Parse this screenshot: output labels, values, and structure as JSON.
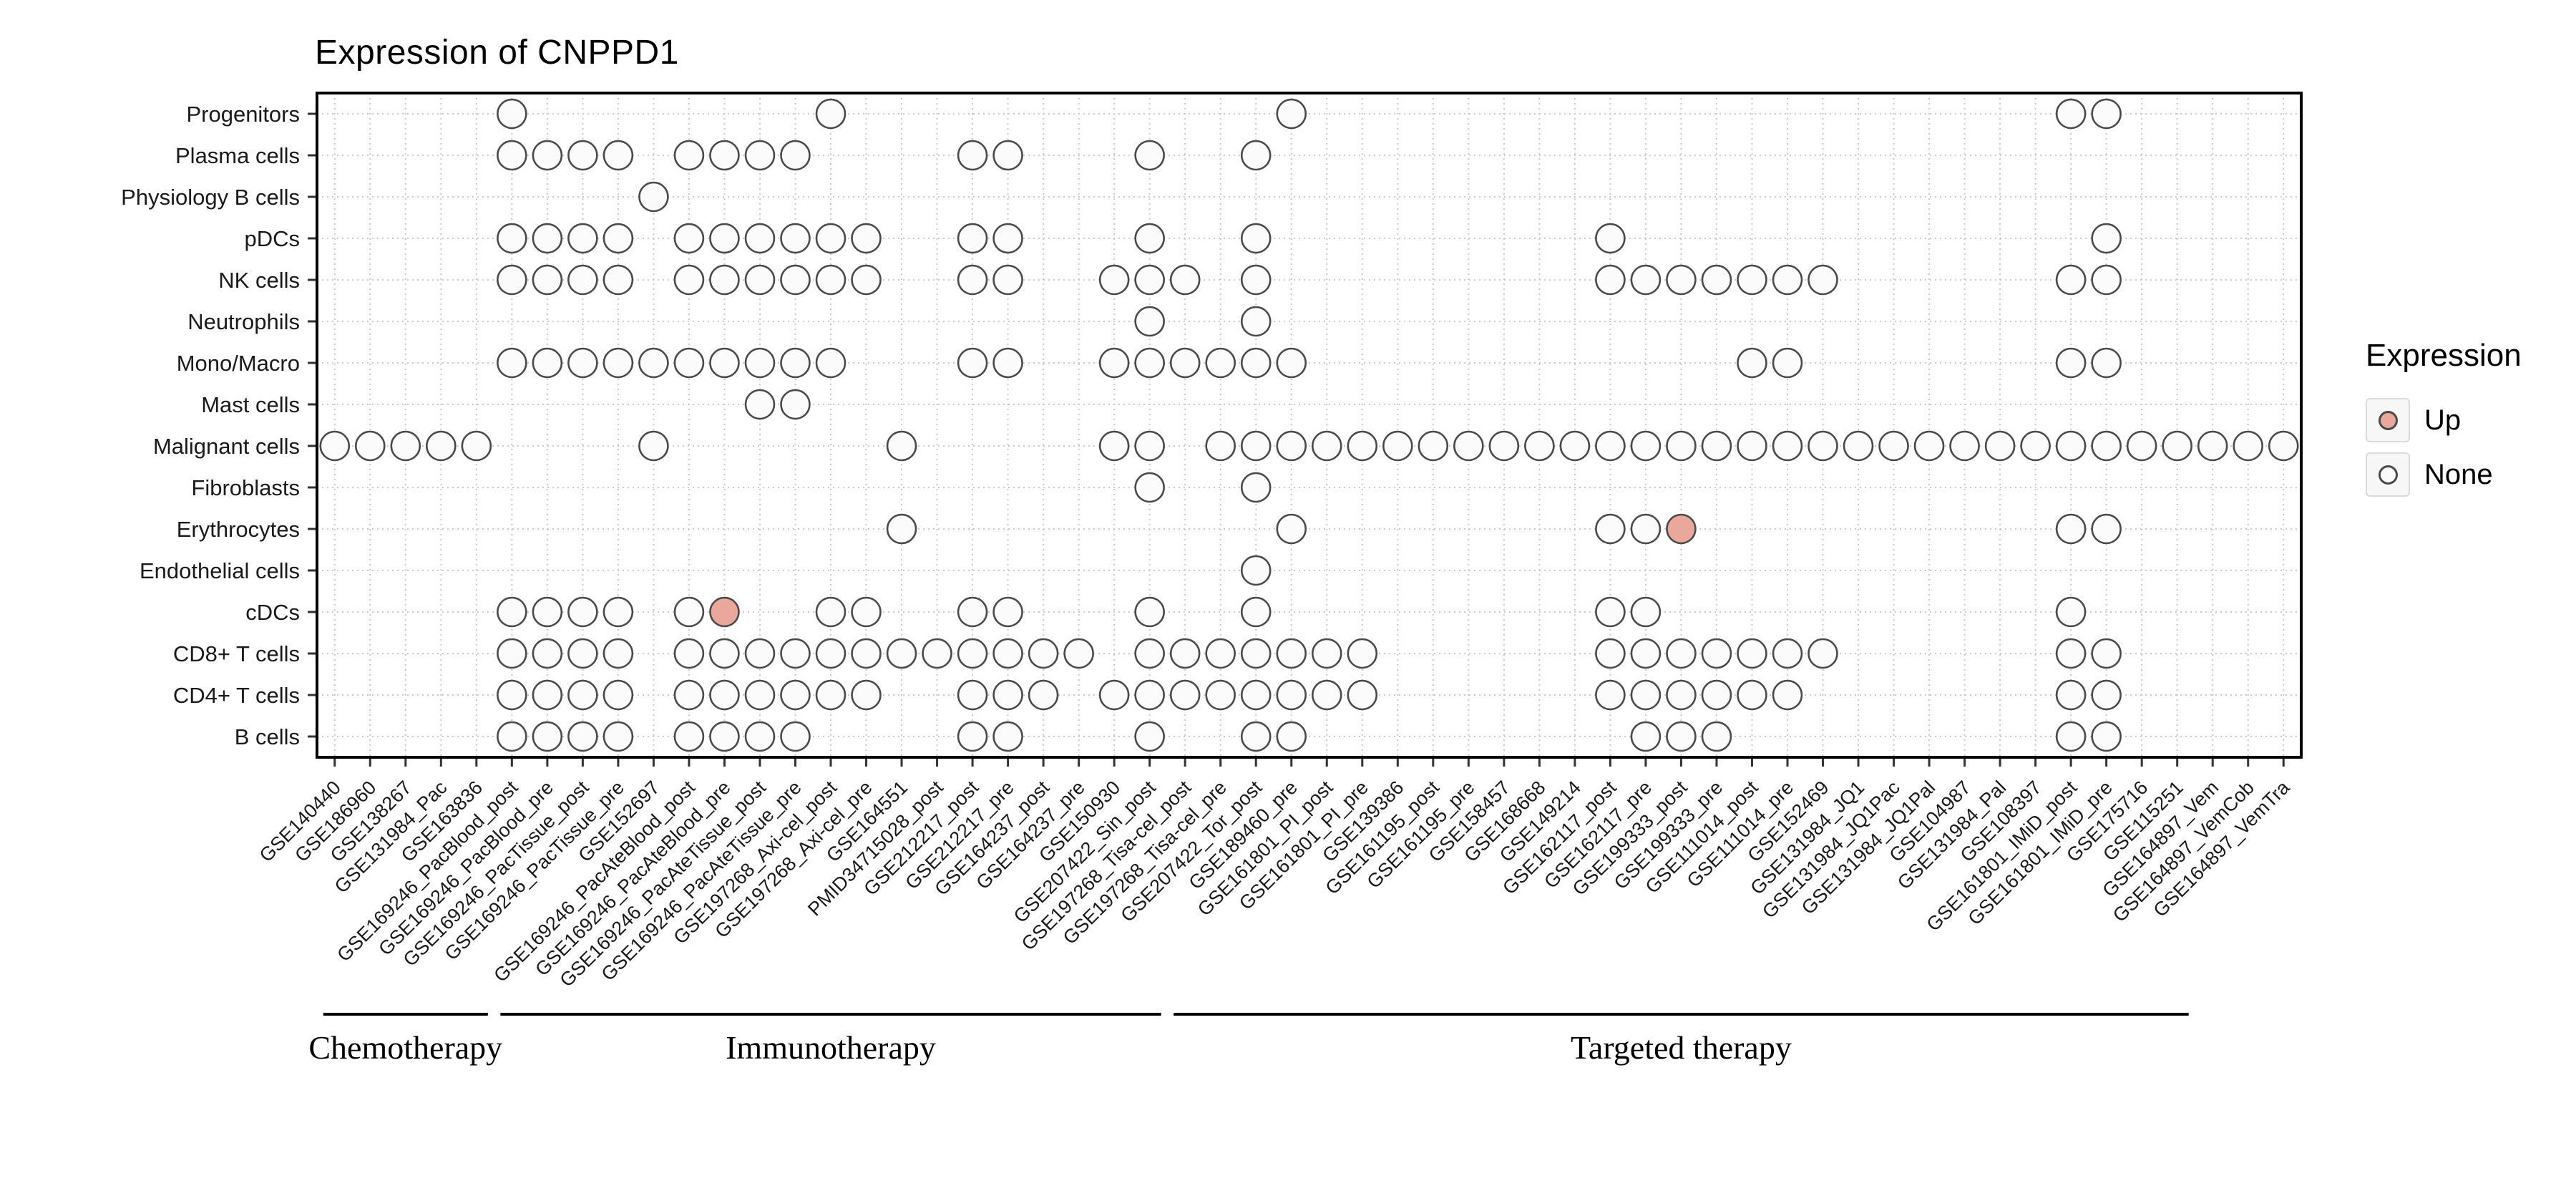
{
  "chart_data": {
    "type": "scatter",
    "title": "Expression of CNPPD1",
    "legend": {
      "title": "Expression",
      "items": [
        {
          "label": "Up",
          "fill": "#E9A89B"
        },
        {
          "label": "None",
          "fill": "#FBFBFB"
        }
      ]
    },
    "colors": {
      "dot_stroke": "#4A4A4A",
      "grid": "#C9C9C9",
      "panel_border": "#000000",
      "axis_text": "#1A1A1A"
    },
    "x_categories": [
      "GSE140440",
      "GSE186960",
      "GSE138267",
      "GSE131984_Pac",
      "GSE163836",
      "GSE169246_PacBlood_post",
      "GSE169246_PacBlood_pre",
      "GSE169246_PacTissue_post",
      "GSE169246_PacTissue_pre",
      "GSE152697",
      "GSE169246_PacAteBlood_post",
      "GSE169246_PacAteBlood_pre",
      "GSE169246_PacAteTissue_post",
      "GSE169246_PacAteTissue_pre",
      "GSE197268_Axi-cel_post",
      "GSE197268_Axi-cel_pre",
      "GSE164551",
      "PMID34715028_post",
      "GSE212217_post",
      "GSE212217_pre",
      "GSE164237_post",
      "GSE164237_pre",
      "GSE150930",
      "GSE207422_Sin_post",
      "GSE197268_Tisa-cel_post",
      "GSE197268_Tisa-cel_pre",
      "GSE207422_Tor_post",
      "GSE189460_pre",
      "GSE161801_PI_post",
      "GSE161801_PI_pre",
      "GSE139386",
      "GSE161195_post",
      "GSE161195_pre",
      "GSE158457",
      "GSE168668",
      "GSE149214",
      "GSE162117_post",
      "GSE162117_pre",
      "GSE199333_post",
      "GSE199333_pre",
      "GSE111014_post",
      "GSE111014_pre",
      "GSE152469",
      "GSE131984_JQ1",
      "GSE131984_JQ1Pac",
      "GSE131984_JQ1Pal",
      "GSE104987",
      "GSE131984_Pal",
      "GSE108397",
      "GSE161801_IMiD_post",
      "GSE161801_IMiD_pre",
      "GSE175716",
      "GSE115251",
      "GSE164897_Vem",
      "GSE164897_VemCob",
      "GSE164897_VemTra"
    ],
    "x_groups": [
      {
        "label": "Chemotherapy",
        "start": 1,
        "end": 5
      },
      {
        "label": "Immunotherapy",
        "start": 6,
        "end": 24
      },
      {
        "label": "Targeted therapy",
        "start": 25,
        "end": 53
      }
    ],
    "rows": [
      {
        "label": "Progenitors",
        "none": [
          6,
          15,
          28,
          50,
          51
        ],
        "up": []
      },
      {
        "label": "Plasma cells",
        "none": [
          6,
          7,
          8,
          9,
          11,
          12,
          13,
          14,
          19,
          20,
          24,
          27
        ],
        "up": []
      },
      {
        "label": "Physiology B cells",
        "none": [
          10
        ],
        "up": []
      },
      {
        "label": "pDCs",
        "none": [
          6,
          7,
          8,
          9,
          11,
          12,
          13,
          14,
          15,
          16,
          19,
          20,
          24,
          27,
          37,
          51
        ],
        "up": []
      },
      {
        "label": "NK cells",
        "none": [
          6,
          7,
          8,
          9,
          11,
          12,
          13,
          14,
          15,
          16,
          19,
          20,
          23,
          24,
          25,
          27,
          37,
          38,
          39,
          40,
          41,
          42,
          43,
          50,
          51
        ],
        "up": []
      },
      {
        "label": "Neutrophils",
        "none": [
          24,
          27
        ],
        "up": []
      },
      {
        "label": "Mono/Macro",
        "none": [
          6,
          7,
          8,
          9,
          10,
          11,
          12,
          13,
          14,
          15,
          19,
          20,
          23,
          24,
          25,
          26,
          27,
          28,
          41,
          42,
          50,
          51
        ],
        "up": []
      },
      {
        "label": "Mast cells",
        "none": [
          13,
          14
        ],
        "up": []
      },
      {
        "label": "Malignant cells",
        "none": [
          1,
          2,
          3,
          4,
          5,
          10,
          17,
          23,
          24,
          26,
          27,
          28,
          29,
          30,
          31,
          32,
          33,
          34,
          35,
          36,
          37,
          38,
          39,
          40,
          41,
          42,
          43,
          44,
          45,
          46,
          47,
          48,
          49,
          50,
          51,
          52,
          53,
          54,
          55,
          56
        ],
        "up": []
      },
      {
        "label": "Fibroblasts",
        "none": [
          24,
          27
        ],
        "up": []
      },
      {
        "label": "Erythrocytes",
        "none": [
          17,
          28,
          37,
          38,
          50,
          51
        ],
        "up": [
          39
        ]
      },
      {
        "label": "Endothelial cells",
        "none": [
          27
        ],
        "up": []
      },
      {
        "label": "cDCs",
        "none": [
          6,
          7,
          8,
          9,
          11,
          15,
          16,
          19,
          20,
          24,
          27,
          37,
          38,
          50
        ],
        "up": [
          12
        ]
      },
      {
        "label": "CD8+ T cells",
        "none": [
          6,
          7,
          8,
          9,
          11,
          12,
          13,
          14,
          15,
          16,
          17,
          18,
          19,
          20,
          21,
          22,
          24,
          25,
          26,
          27,
          28,
          29,
          30,
          37,
          38,
          39,
          40,
          41,
          42,
          43,
          50,
          51
        ],
        "up": []
      },
      {
        "label": "CD4+ T cells",
        "none": [
          6,
          7,
          8,
          9,
          11,
          12,
          13,
          14,
          15,
          16,
          19,
          20,
          21,
          23,
          24,
          25,
          26,
          27,
          28,
          29,
          30,
          37,
          38,
          39,
          40,
          41,
          42,
          50,
          51
        ],
        "up": []
      },
      {
        "label": "B cells",
        "none": [
          6,
          7,
          8,
          9,
          11,
          12,
          13,
          14,
          19,
          20,
          24,
          27,
          28,
          38,
          39,
          40,
          50,
          51
        ],
        "up": []
      }
    ]
  }
}
